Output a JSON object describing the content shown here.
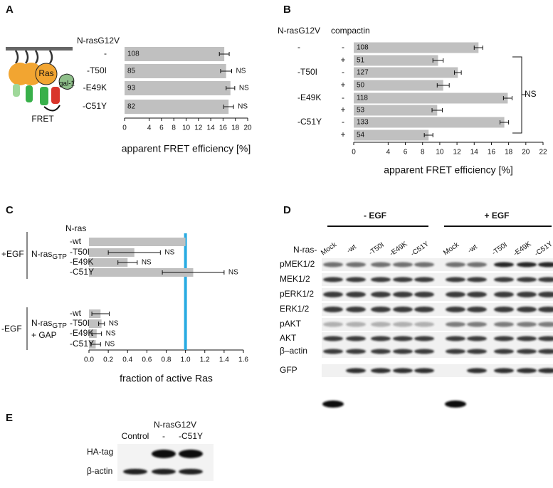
{
  "panel_labels": [
    "A",
    "B",
    "C",
    "D",
    "E"
  ],
  "diagram": {
    "protein": "Ras",
    "galectin": "gal-1",
    "readout": "FRET"
  },
  "chart_data": [
    {
      "type": "bar",
      "orientation": "horizontal",
      "header": "N-rasG12V",
      "categories": [
        "-",
        "-T50I",
        "-E49K",
        "-C51Y"
      ],
      "values": [
        16.2,
        16.5,
        17.2,
        16.9
      ],
      "errors": [
        0.8,
        0.9,
        0.7,
        0.8
      ],
      "n": [
        108,
        85,
        93,
        82
      ],
      "annotations": [
        null,
        "NS",
        "NS",
        "NS"
      ],
      "xlabel": "apparent FRET efficiency [%]",
      "xlim": [
        0,
        20
      ],
      "xticks": [
        0,
        4,
        6,
        8,
        10,
        12,
        14,
        16,
        18,
        20
      ],
      "color": "#c0c0c0"
    },
    {
      "type": "bar",
      "orientation": "horizontal",
      "header": "N-rasG12V",
      "subheader": "compactin",
      "group_labels": [
        "-",
        "-T50I",
        "-E49K",
        "-C51Y"
      ],
      "categories": [
        "-",
        "+",
        "-",
        "+",
        "-",
        "+",
        "-",
        "+"
      ],
      "values": [
        14.5,
        9.8,
        12.1,
        10.4,
        17.9,
        9.7,
        17.5,
        8.7
      ],
      "errors": [
        0.5,
        0.6,
        0.4,
        0.7,
        0.5,
        0.6,
        0.5,
        0.5
      ],
      "n": [
        108,
        51,
        127,
        50,
        118,
        53,
        133,
        54
      ],
      "bracket_label": "NS",
      "xlabel": "apparent FRET efficiency [%]",
      "xlim": [
        0,
        22
      ],
      "xticks": [
        0,
        4,
        6,
        8,
        10,
        12,
        14,
        16,
        18,
        20,
        22
      ],
      "color": "#c0c0c0"
    },
    {
      "type": "bar",
      "orientation": "horizontal",
      "header": "N-ras",
      "categories": [
        "-wt",
        "-T50I",
        "-E49K",
        "-C51Y",
        "-wt",
        "-T50I",
        "-E49K",
        "-C51Y"
      ],
      "values": [
        1.0,
        0.47,
        0.4,
        1.08,
        0.12,
        0.13,
        0.08,
        0.07
      ],
      "errors": [
        null,
        0.27,
        0.1,
        0.32,
        0.09,
        0.03,
        0.05,
        0.05
      ],
      "annotations": [
        null,
        "NS",
        "NS",
        "NS",
        null,
        "NS",
        "NS",
        "NS"
      ],
      "groups": [
        {
          "label": "+EGF",
          "name": "N-ras",
          "subscript": "GTP"
        },
        {
          "label": "-EGF",
          "name": "N-ras",
          "subscript": "GTP",
          "extra": "+ GAP"
        }
      ],
      "reference_line": 1,
      "reference_color": "#29abe2",
      "xlabel": "fraction of active Ras",
      "xlim": [
        0,
        1.6
      ],
      "xticks": [
        {
          "value": 0,
          "label": "0.0"
        },
        0.2,
        0.4,
        0.6,
        0.8,
        {
          "value": 1,
          "label": "1.0"
        },
        1.2,
        1.4,
        1.6
      ],
      "color": "#c0c0c0"
    }
  ],
  "blot_d": {
    "conditions": [
      "- EGF",
      "+ EGF"
    ],
    "lane_prefix": "N-ras-",
    "lanes": [
      "Mock",
      "-wt",
      "-T50I",
      "-E49K",
      "-C51Y",
      "Mock",
      "-wt",
      "-T50I",
      "-E49K",
      "-C51Y"
    ],
    "rows": [
      "pMEK1/2",
      "MEK1/2",
      "pERK1/2",
      "ERK1/2",
      "pAKT",
      "AKT",
      "β–actin",
      "GFP"
    ]
  },
  "blot_e": {
    "construct": "N-rasG12V",
    "lanes": [
      "Control",
      "-",
      "-C51Y"
    ],
    "rows": [
      "HA-tag",
      "β-actin"
    ]
  }
}
